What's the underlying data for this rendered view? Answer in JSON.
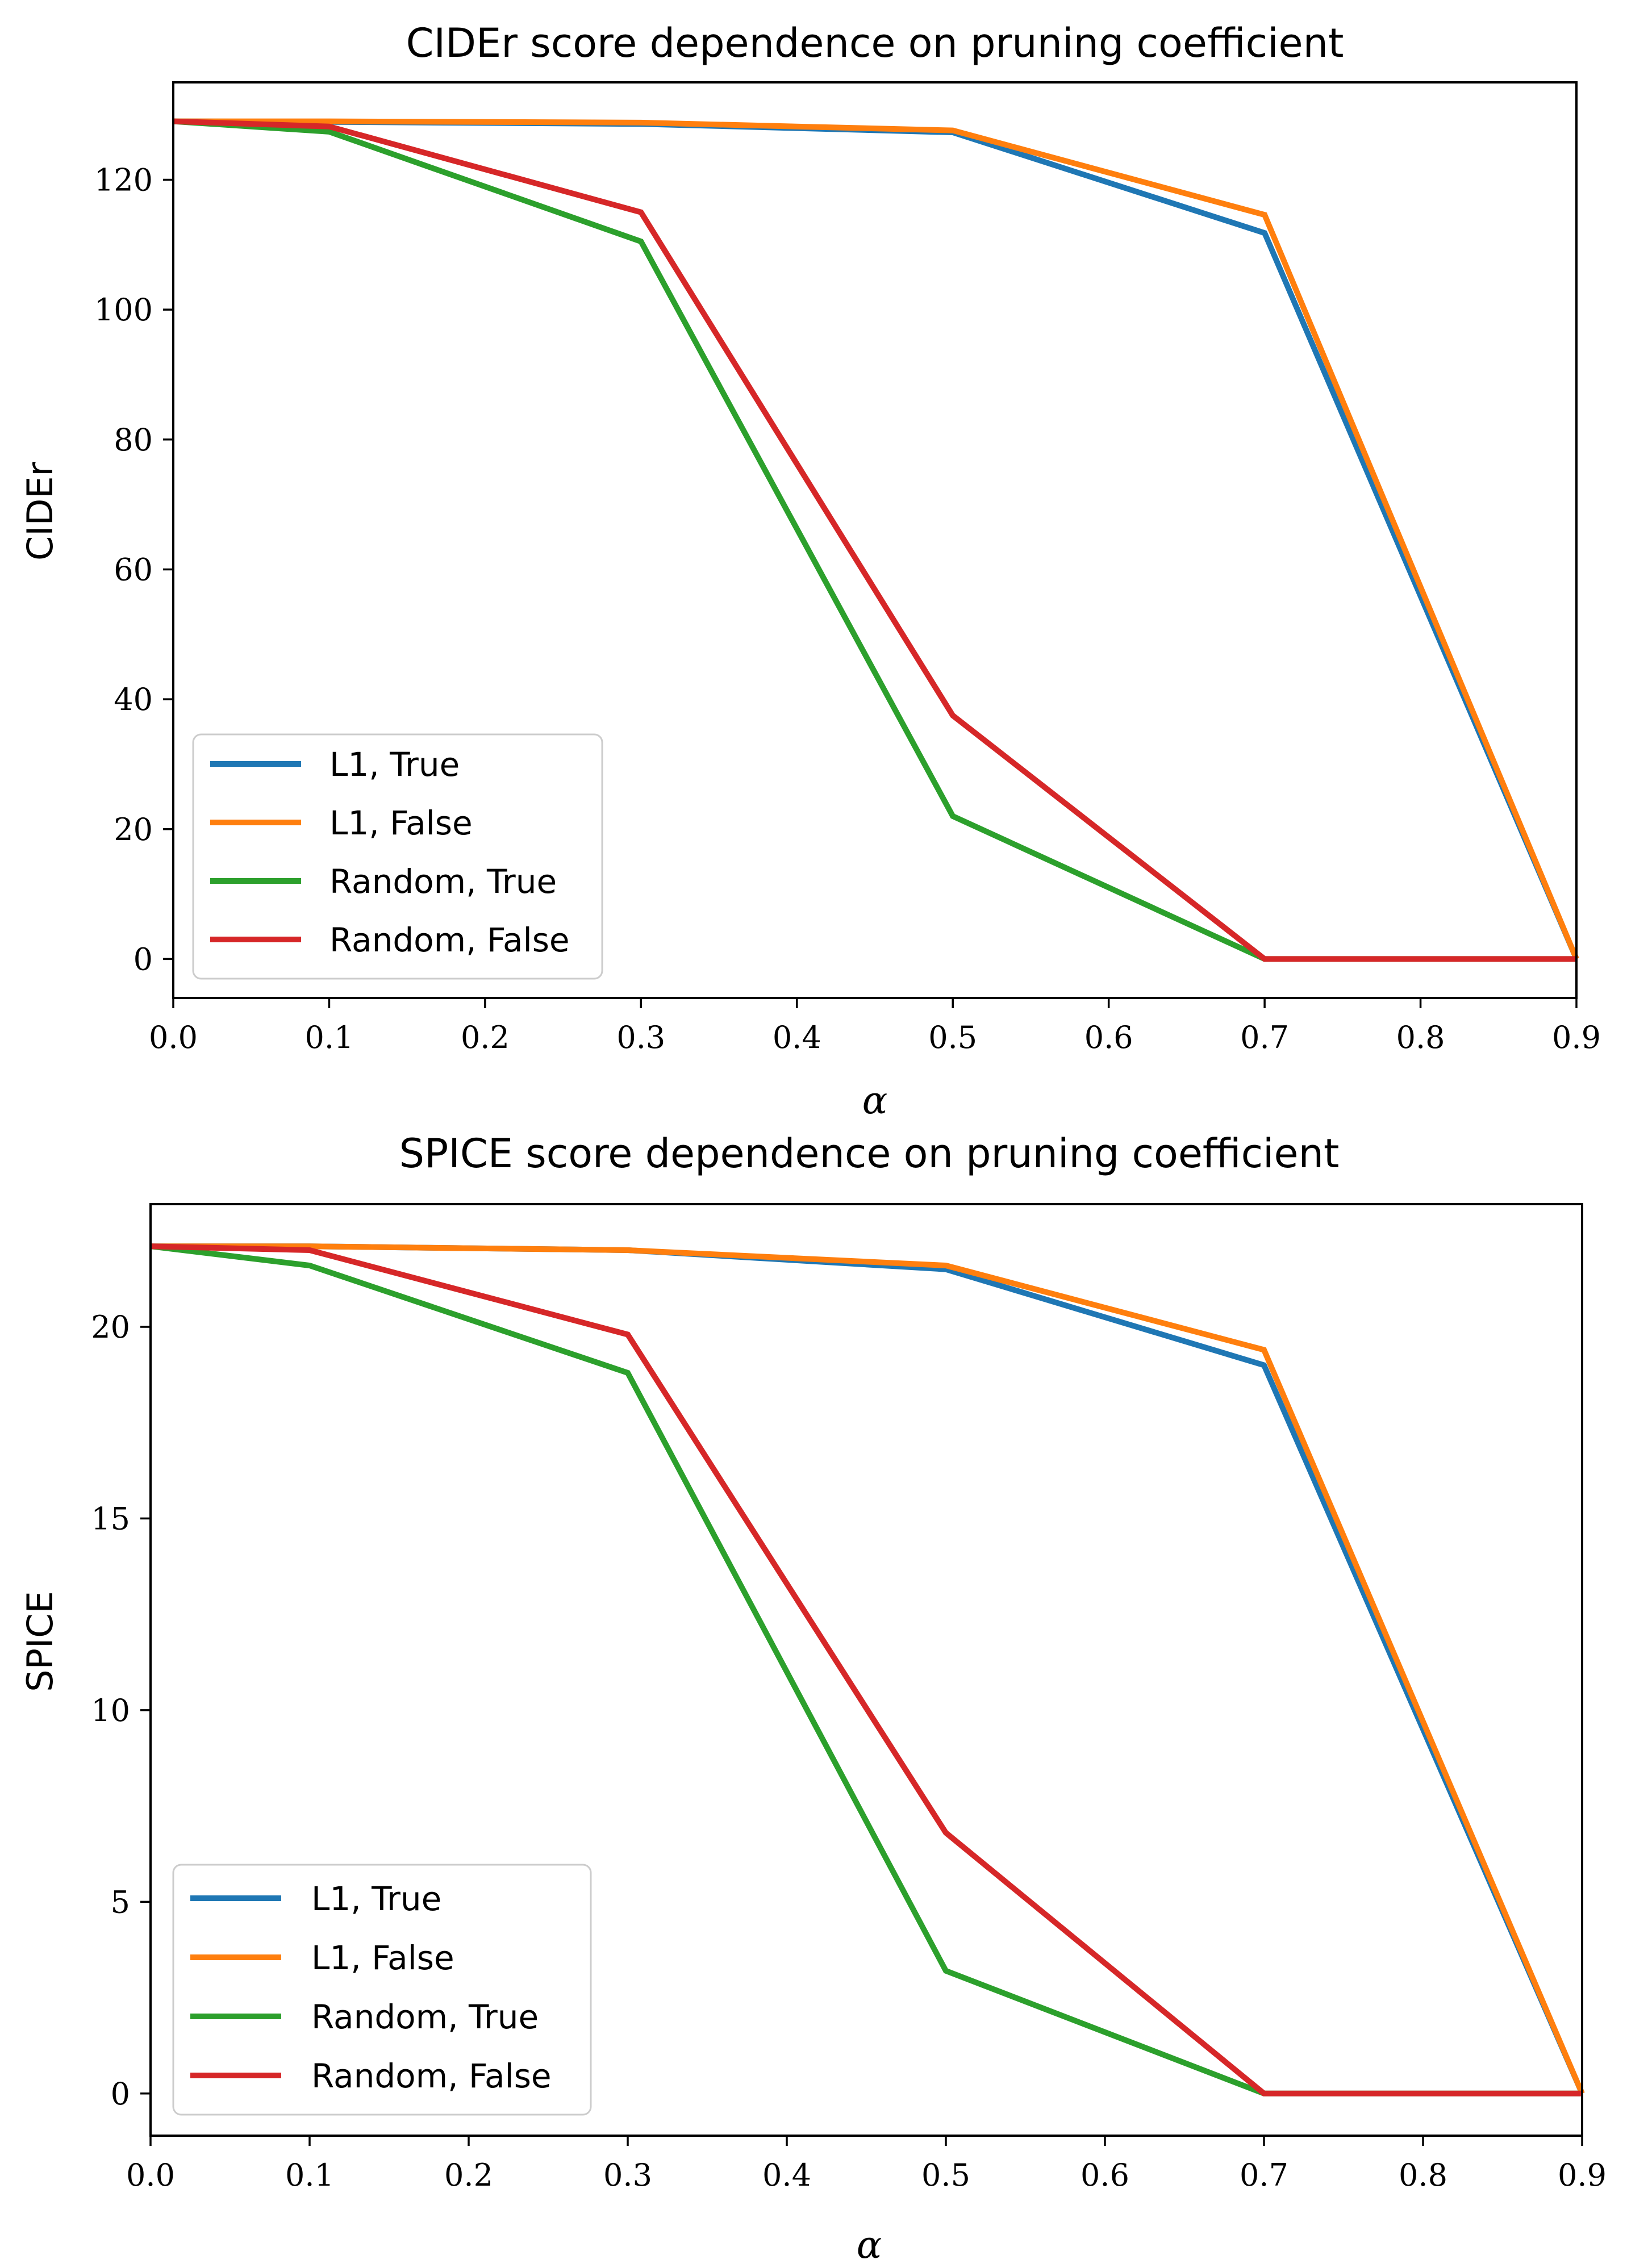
{
  "chart_data": [
    {
      "type": "line",
      "title": "CIDEr score dependence on pruning coefficient",
      "xlabel": "α",
      "ylabel": "CIDEr",
      "xlim": [
        0.0,
        0.9
      ],
      "ylim": [
        -6,
        135
      ],
      "xticks": [
        0.0,
        0.1,
        0.2,
        0.3,
        0.4,
        0.5,
        0.6,
        0.7,
        0.8,
        0.9
      ],
      "xtick_labels": [
        "0.0",
        "0.1",
        "0.2",
        "0.3",
        "0.4",
        "0.5",
        "0.6",
        "0.7",
        "0.8",
        "0.9"
      ],
      "yticks": [
        0,
        20,
        40,
        60,
        80,
        100,
        120
      ],
      "ytick_labels": [
        "0",
        "20",
        "40",
        "60",
        "80",
        "100",
        "120"
      ],
      "grid": false,
      "legend_position": "lower-left",
      "x": [
        0.0,
        0.1,
        0.3,
        0.5,
        0.7,
        0.9
      ],
      "series": [
        {
          "name": "L1, True",
          "color": "#1f77b4",
          "values": [
            129.0,
            128.9,
            128.6,
            127.3,
            111.8,
            0.0
          ]
        },
        {
          "name": "L1, False",
          "color": "#ff7f0e",
          "values": [
            129.0,
            129.0,
            128.8,
            127.6,
            114.6,
            0.0
          ]
        },
        {
          "name": "Random, True",
          "color": "#2ca02c",
          "values": [
            129.0,
            127.4,
            110.5,
            22.0,
            0.0,
            0.0
          ]
        },
        {
          "name": "Random, False",
          "color": "#d62728",
          "values": [
            129.0,
            128.2,
            115.0,
            37.5,
            0.0,
            0.0
          ]
        }
      ]
    },
    {
      "type": "line",
      "title": "SPICE score dependence on pruning coefficient",
      "xlabel": "α",
      "ylabel": "SPICE",
      "xlim": [
        0.0,
        0.9
      ],
      "ylim": [
        -1.1,
        23.2
      ],
      "xticks": [
        0.0,
        0.1,
        0.2,
        0.3,
        0.4,
        0.5,
        0.6,
        0.7,
        0.8,
        0.9
      ],
      "xtick_labels": [
        "0.0",
        "0.1",
        "0.2",
        "0.3",
        "0.4",
        "0.5",
        "0.6",
        "0.7",
        "0.8",
        "0.9"
      ],
      "yticks": [
        0,
        5,
        10,
        15,
        20
      ],
      "ytick_labels": [
        "0",
        "5",
        "10",
        "15",
        "20"
      ],
      "grid": false,
      "legend_position": "lower-left",
      "x": [
        0.0,
        0.1,
        0.3,
        0.5,
        0.7,
        0.9
      ],
      "series": [
        {
          "name": "L1, True",
          "color": "#1f77b4",
          "values": [
            22.1,
            22.1,
            22.0,
            21.5,
            19.0,
            0.0
          ]
        },
        {
          "name": "L1, False",
          "color": "#ff7f0e",
          "values": [
            22.1,
            22.1,
            22.0,
            21.6,
            19.4,
            0.0
          ]
        },
        {
          "name": "Random, True",
          "color": "#2ca02c",
          "values": [
            22.1,
            21.6,
            18.8,
            3.2,
            0.0,
            0.0
          ]
        },
        {
          "name": "Random, False",
          "color": "#d62728",
          "values": [
            22.1,
            22.0,
            19.8,
            6.8,
            0.0,
            0.0
          ]
        }
      ]
    }
  ]
}
